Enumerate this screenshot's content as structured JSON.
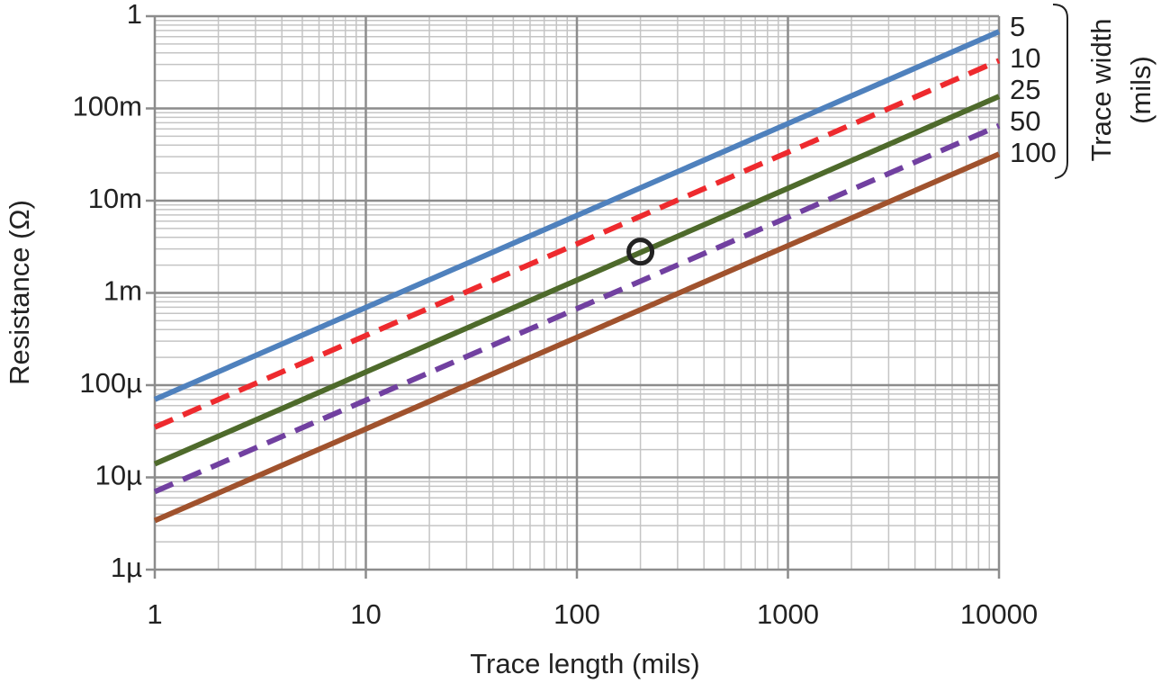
{
  "chart_data": {
    "type": "line",
    "x_label": "Trace length (mils)",
    "y_label": "Resistance (Ω)",
    "log_x": true,
    "log_y": true,
    "grid": true,
    "minor_grid": true,
    "xlim": [
      1,
      10000
    ],
    "ylim": [
      1e-06,
      1
    ],
    "xticks": [
      1,
      10,
      100,
      1000,
      10000
    ],
    "yticks": [
      {
        "value": 1e-06,
        "label": "1µ"
      },
      {
        "value": 1e-05,
        "label": "10µ"
      },
      {
        "value": 0.0001,
        "label": "100µ"
      },
      {
        "value": 0.001,
        "label": "1m"
      },
      {
        "value": 0.01,
        "label": "10m"
      },
      {
        "value": 0.1,
        "label": "100m"
      },
      1
    ],
    "legend_title": [
      "Trace width",
      "(mils)"
    ],
    "legend_position": "right",
    "x": [
      1,
      10000
    ],
    "series": [
      {
        "name": "5",
        "color": "#4f81bd",
        "dash": false,
        "values": [
          7e-05,
          0.68
        ]
      },
      {
        "name": "10",
        "color": "#ee2a2e",
        "dash": true,
        "values": [
          3.5e-05,
          0.33
        ]
      },
      {
        "name": "25",
        "color": "#4e6a2b",
        "dash": false,
        "values": [
          1.4e-05,
          0.135
        ]
      },
      {
        "name": "50",
        "color": "#7140a0",
        "dash": true,
        "values": [
          7e-06,
          0.065
        ]
      },
      {
        "name": "100",
        "color": "#a0522d",
        "dash": false,
        "values": [
          3.4e-06,
          0.032
        ]
      }
    ],
    "highlight": {
      "x": 200,
      "y": 0.0028,
      "color": "#222222"
    }
  }
}
